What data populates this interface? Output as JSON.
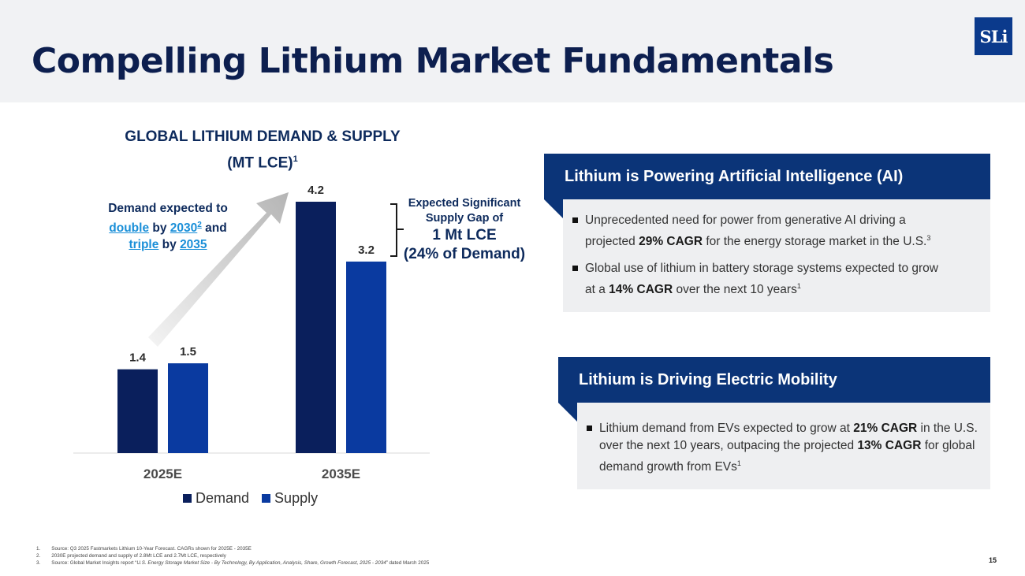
{
  "header": {
    "title": "Compelling Lithium Market Fundamentals",
    "logo_text": "SLi"
  },
  "chart_data": {
    "type": "bar",
    "title": "GLOBAL LITHIUM DEMAND & SUPPLY",
    "title_line2": "(MT LCE)",
    "title_superscript": "1",
    "categories": [
      "2025E",
      "2035E"
    ],
    "series": [
      {
        "name": "Demand",
        "values": [
          1.4,
          4.2
        ],
        "labels": [
          "1.4",
          "4.2"
        ],
        "color": "#0a1f5c"
      },
      {
        "name": "Supply",
        "values": [
          1.5,
          3.2
        ],
        "labels": [
          "1.5",
          "3.2"
        ],
        "color": "#0a3aa0"
      }
    ],
    "ylim": [
      0,
      4.2
    ],
    "xlabel": "",
    "ylabel": "",
    "legend_position": "bottom",
    "annotations": {
      "demand": {
        "line1": "Demand expected to",
        "double": "double",
        "by1": "by",
        "year1": "2030",
        "sup1": "2",
        "and": "and",
        "triple": "triple",
        "by2": "by",
        "year2": "2035"
      },
      "gap": {
        "line1": "Expected Significant",
        "line2": "Supply Gap of",
        "line3": "1 Mt LCE",
        "line4": "(24% of Demand)"
      }
    }
  },
  "panels": {
    "ai": {
      "heading": "Lithium is Powering Artificial Intelligence (AI)",
      "bullet1": {
        "pre": "Unprecedented need for power from generative AI driving a projected",
        "bold": "29% CAGR",
        "post": "for the energy storage market in the U.S.",
        "sup": "3"
      },
      "bullet2": {
        "pre": "Global use of lithium in battery storage systems expected to grow at a",
        "bold": "14% CAGR",
        "post": "over the next 10 years",
        "sup": "1"
      }
    },
    "ev": {
      "heading": "Lithium is Driving Electric Mobility",
      "bullet1": {
        "pre": "Lithium demand from EVs expected to grow at",
        "bold1": "21% CAGR",
        "mid": "in the U.S. over the next 10 years, outpacing the projected",
        "bold2": "13% CAGR",
        "post": "for global demand growth from EVs",
        "sup": "1"
      }
    }
  },
  "footnotes": [
    {
      "num": "1.",
      "text": "Source: Q3 2025 Fastmarkets Lithium 10-Year Forecast. CAGRs shown for 2025E - 2035E"
    },
    {
      "num": "2.",
      "text": "2030E projected demand and supply of 2.8Mt LCE and 2.7Mt LCE, respectively"
    },
    {
      "num": "3.",
      "text_pre": "Source: Global Market Insights report “",
      "text_italic": "U.S. Energy Storage Market Size - By Technology, By Application, Analysis, Share, Growth Forecast, 2025 - 2034",
      "text_post": "” dated March 2025"
    }
  ],
  "page_number": "15"
}
